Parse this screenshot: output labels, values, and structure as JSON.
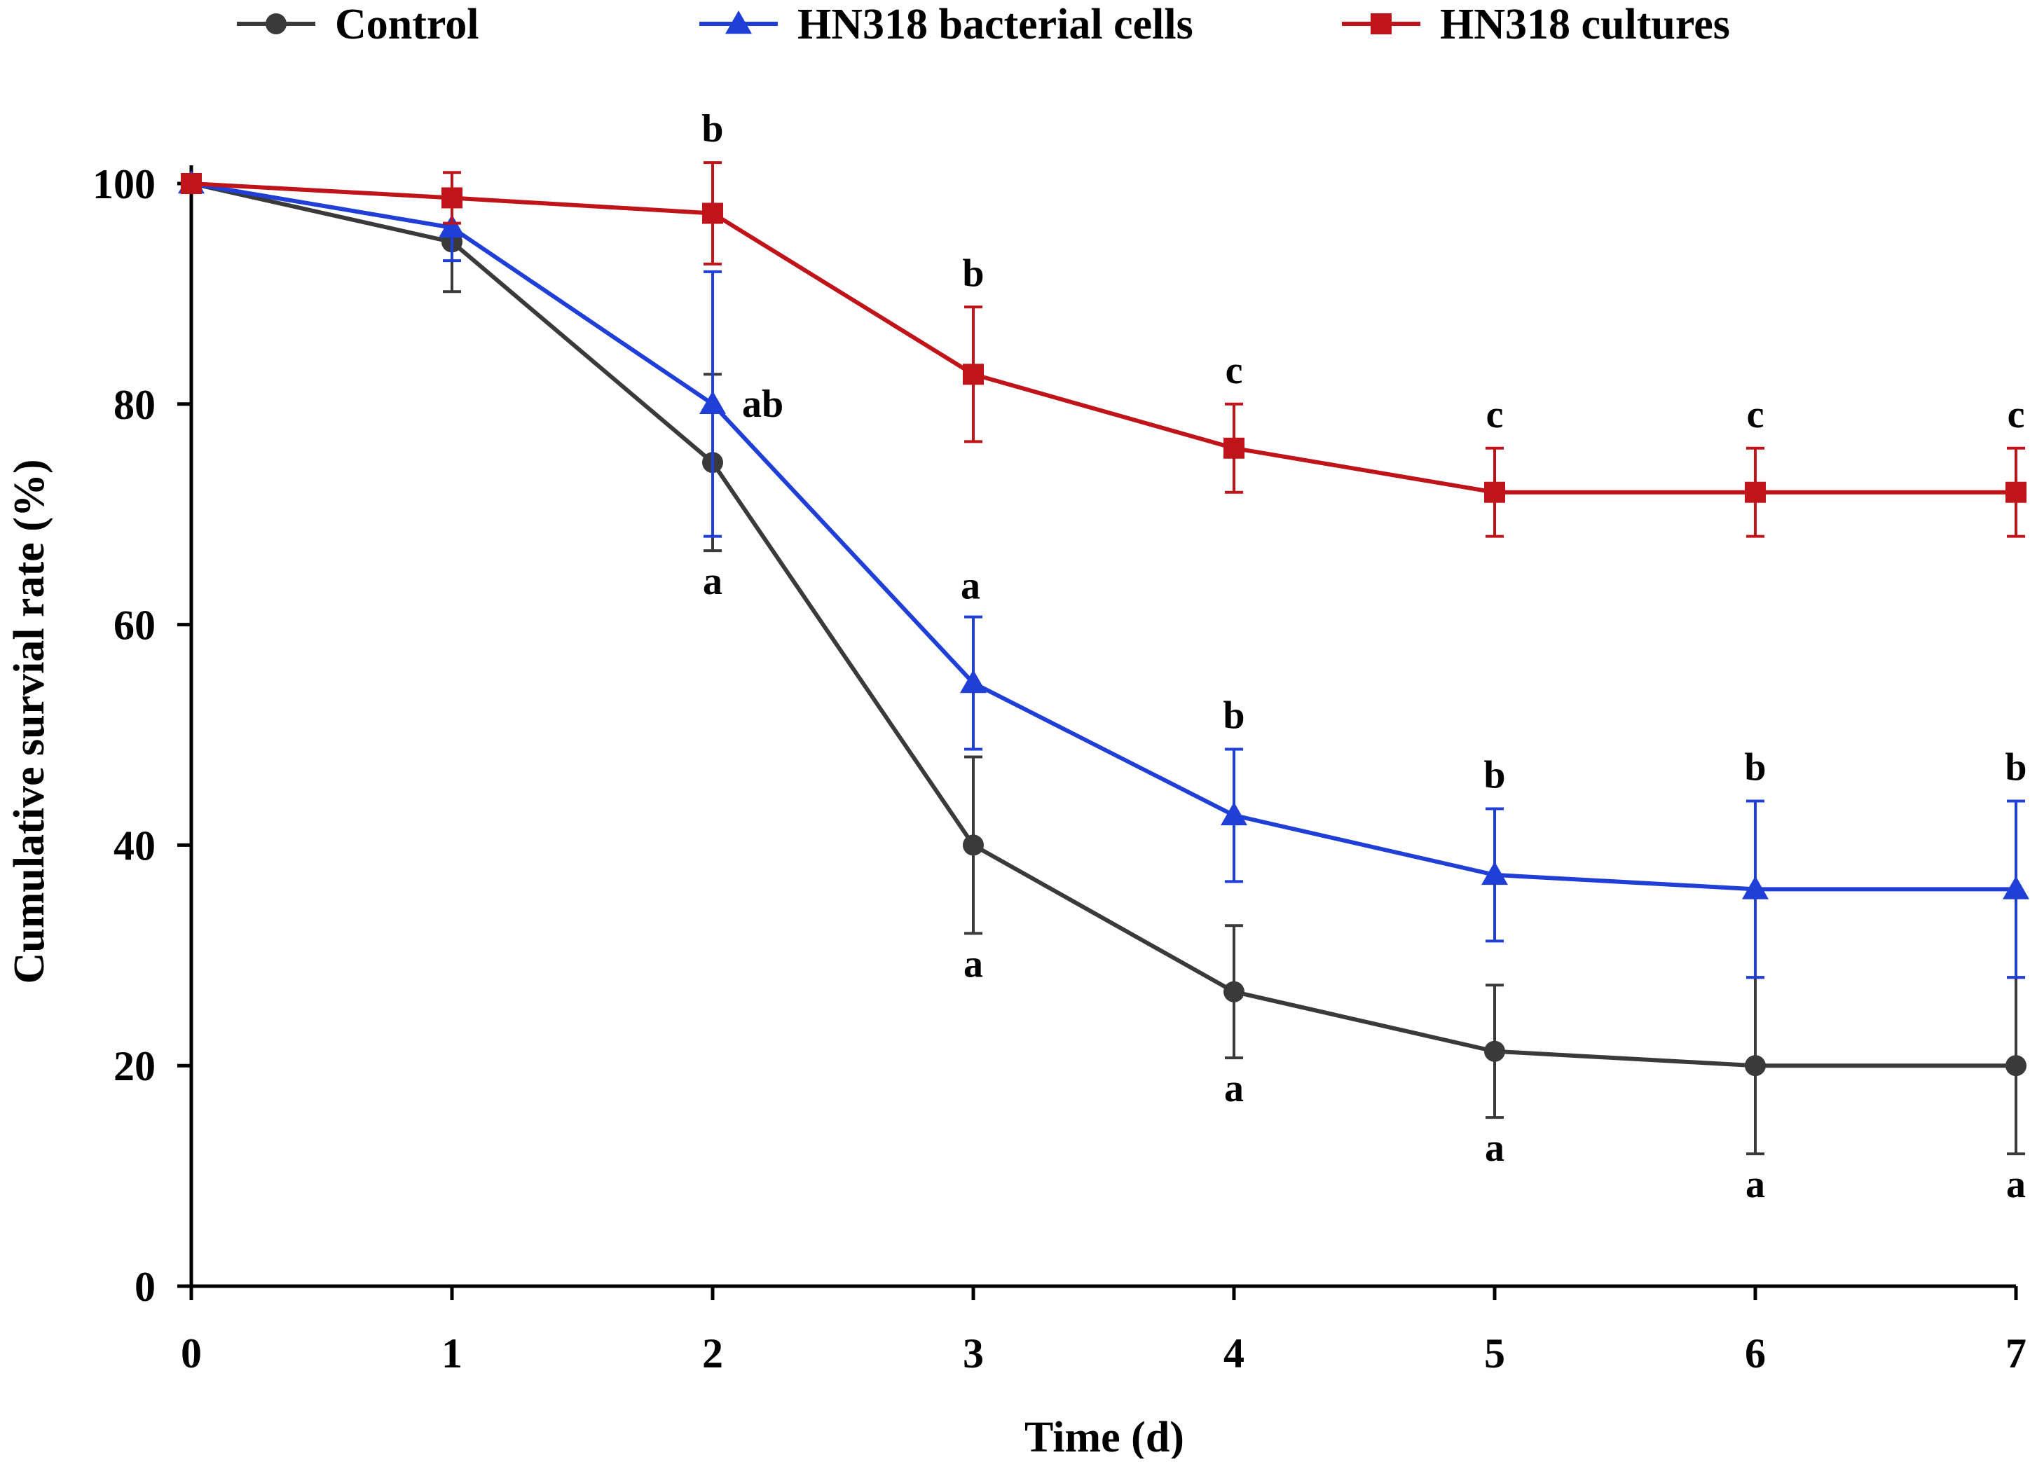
{
  "chart_data": {
    "type": "line",
    "title": "",
    "xlabel": "Time (d)",
    "ylabel": "Cumulative survial rate (%)",
    "x": [
      0,
      1,
      2,
      3,
      4,
      5,
      6,
      7
    ],
    "xlim": [
      0,
      7
    ],
    "ylim": [
      0,
      100
    ],
    "xticks": [
      "0",
      "1",
      "2",
      "3",
      "4",
      "5",
      "6",
      "7"
    ],
    "yticks": [
      "0",
      "20",
      "40",
      "60",
      "80",
      "100"
    ],
    "grid": false,
    "legend_position": "top",
    "series": [
      {
        "name": "Control",
        "color": "#3a3a3a",
        "marker": "circle",
        "values": [
          100,
          94.7,
          74.7,
          40,
          26.7,
          21.3,
          20,
          20
        ],
        "errors": [
          0,
          4.5,
          8,
          8,
          6,
          6,
          8,
          8
        ],
        "sig_labels": [
          "",
          "",
          "a",
          "a",
          "a",
          "a",
          "a",
          "a"
        ]
      },
      {
        "name": "HN318 bacterial cells",
        "color": "#1f3fd6",
        "marker": "triangle",
        "values": [
          100,
          96,
          80,
          54.7,
          42.7,
          37.3,
          36,
          36
        ],
        "errors": [
          0,
          3,
          12,
          6,
          6,
          6,
          8,
          8
        ],
        "sig_labels": [
          "",
          "",
          "ab",
          "a",
          "b",
          "b",
          "b",
          "b"
        ]
      },
      {
        "name": "HN318 cultures",
        "color": "#c0141b",
        "marker": "square",
        "values": [
          100,
          98.7,
          97.3,
          82.7,
          76,
          72,
          72,
          72
        ],
        "errors": [
          0,
          2.3,
          4.6,
          6.1,
          4,
          4,
          4,
          4
        ],
        "sig_labels": [
          "",
          "",
          "b",
          "b",
          "c",
          "c",
          "c",
          "c"
        ]
      }
    ]
  }
}
